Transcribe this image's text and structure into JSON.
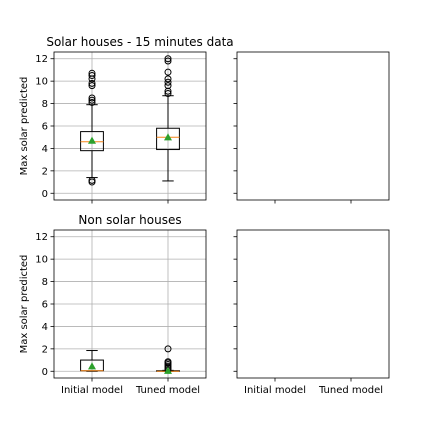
{
  "chart_data": [
    {
      "type": "boxplot",
      "panel": "top-left",
      "title": "Solar houses - 15 minutes data",
      "ylabel": "Max solar predicted",
      "xlabel": "",
      "categories": [
        "Initial model",
        "Tuned model"
      ],
      "show_x_tick_labels": false,
      "show_y_tick_labels": true,
      "grid": true,
      "ylim": [
        -0.6,
        12.6
      ],
      "yticks": [
        "0",
        "2",
        "4",
        "6",
        "8",
        "10",
        "12"
      ],
      "boxes": [
        {
          "q1": 3.8,
          "median": 4.6,
          "q3": 5.5,
          "whisker_low": 1.4,
          "whisker_high": 7.9,
          "mean": 4.7,
          "fliers": [
            1.0,
            1.15,
            8.1,
            8.3,
            8.5,
            9.6,
            9.8,
            10.2,
            10.5,
            10.7
          ]
        },
        {
          "q1": 3.9,
          "median": 5.0,
          "q3": 5.8,
          "whisker_low": 1.1,
          "whisker_high": 8.7,
          "mean": 5.0,
          "fliers": [
            8.9,
            9.1,
            9.6,
            9.9,
            10.2,
            10.8,
            11.8,
            12.0
          ]
        }
      ]
    },
    {
      "type": "boxplot",
      "panel": "top-right",
      "title": "",
      "ylabel": "",
      "xlabel": "",
      "categories": [
        "Initial model",
        "Tuned model"
      ],
      "show_x_tick_labels": false,
      "show_y_tick_labels": false,
      "grid": false,
      "ylim": [
        -0.6,
        12.6
      ],
      "yticks": [
        "0",
        "2",
        "4",
        "6",
        "8",
        "10",
        "12"
      ],
      "boxes": []
    },
    {
      "type": "boxplot",
      "panel": "bottom-left",
      "title": "Non solar houses",
      "ylabel": "Max solar predicted",
      "xlabel": "",
      "categories": [
        "Initial model",
        "Tuned model"
      ],
      "show_x_tick_labels": true,
      "show_y_tick_labels": true,
      "grid": true,
      "ylim": [
        -0.6,
        12.6
      ],
      "yticks": [
        "0",
        "2",
        "4",
        "6",
        "8",
        "10",
        "12"
      ],
      "boxes": [
        {
          "q1": 0.05,
          "median": 0.05,
          "q3": 1.0,
          "whisker_low": 0.0,
          "whisker_high": 1.85,
          "mean": 0.45,
          "fliers": []
        },
        {
          "q1": 0.0,
          "median": 0.0,
          "q3": 0.05,
          "whisker_low": 0.0,
          "whisker_high": 0.08,
          "mean": 0.05,
          "fliers": [
            0.15,
            0.3,
            0.45,
            0.6,
            0.75,
            0.85,
            2.0
          ]
        }
      ]
    },
    {
      "type": "boxplot",
      "panel": "bottom-right",
      "title": "",
      "ylabel": "",
      "xlabel": "",
      "categories": [
        "Initial model",
        "Tuned model"
      ],
      "show_x_tick_labels": true,
      "show_y_tick_labels": false,
      "grid": false,
      "ylim": [
        -0.6,
        12.6
      ],
      "yticks": [
        "0",
        "2",
        "4",
        "6",
        "8",
        "10",
        "12"
      ],
      "boxes": []
    }
  ],
  "colors": {
    "median": "#f58518",
    "mean_marker": "#2ca02c",
    "grid": "#b0b0b0"
  }
}
